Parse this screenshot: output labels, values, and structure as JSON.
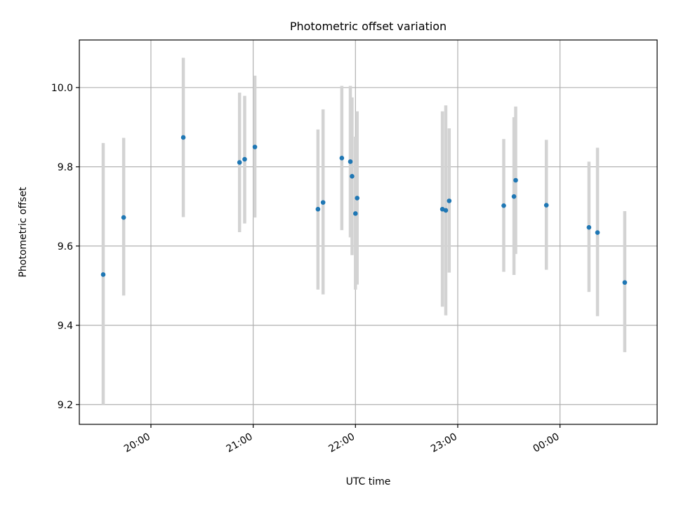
{
  "chart_data": {
    "type": "scatter",
    "title": "Photometric offset variation",
    "xlabel": "UTC time",
    "ylabel": "Photometric offset",
    "x_ticks": [
      "20:00",
      "21:00",
      "22:00",
      "23:00",
      "00:00"
    ],
    "x_tick_minutes": [
      1200,
      1260,
      1320,
      1380,
      1440
    ],
    "xlim_minutes": [
      1158,
      1497
    ],
    "y_ticks": [
      "9.2",
      "9.4",
      "9.6",
      "9.8",
      "10.0"
    ],
    "y_tick_values": [
      9.2,
      9.4,
      9.6,
      9.8,
      10.0
    ],
    "ylim": [
      9.15,
      10.12
    ],
    "grid": true,
    "colors": {
      "marker": "#1f77b4",
      "errorbar": "#d3d3d3",
      "grid": "#b0b0b0"
    },
    "series": [
      {
        "points": [
          {
            "t": "19:32",
            "y": 9.528,
            "lo": 9.2,
            "hi": 9.86
          },
          {
            "t": "19:44",
            "y": 9.672,
            "lo": 9.475,
            "hi": 9.873
          },
          {
            "t": "20:19",
            "y": 9.874,
            "lo": 9.673,
            "hi": 10.075
          },
          {
            "t": "20:52",
            "y": 9.811,
            "lo": 9.635,
            "hi": 9.987
          },
          {
            "t": "20:55",
            "y": 9.819,
            "lo": 9.657,
            "hi": 9.979
          },
          {
            "t": "21:01",
            "y": 9.85,
            "lo": 9.672,
            "hi": 10.03
          },
          {
            "t": "21:38",
            "y": 9.693,
            "lo": 9.49,
            "hi": 9.894
          },
          {
            "t": "21:41",
            "y": 9.71,
            "lo": 9.478,
            "hi": 9.945
          },
          {
            "t": "21:52",
            "y": 9.822,
            "lo": 9.64,
            "hi": 10.004
          },
          {
            "t": "21:57",
            "y": 9.813,
            "lo": 9.622,
            "hi": 10.004
          },
          {
            "t": "21:58",
            "y": 9.776,
            "lo": 9.577,
            "hi": 9.975
          },
          {
            "t": "22:00",
            "y": 9.682,
            "lo": 9.49,
            "hi": 9.876
          },
          {
            "t": "22:01",
            "y": 9.721,
            "lo": 9.503,
            "hi": 9.94
          },
          {
            "t": "22:51",
            "y": 9.693,
            "lo": 9.447,
            "hi": 9.94
          },
          {
            "t": "22:53",
            "y": 9.69,
            "lo": 9.425,
            "hi": 9.955
          },
          {
            "t": "22:55",
            "y": 9.714,
            "lo": 9.533,
            "hi": 9.897
          },
          {
            "t": "23:27",
            "y": 9.702,
            "lo": 9.535,
            "hi": 9.87
          },
          {
            "t": "23:33",
            "y": 9.725,
            "lo": 9.527,
            "hi": 9.925
          },
          {
            "t": "23:34",
            "y": 9.766,
            "lo": 9.58,
            "hi": 9.952
          },
          {
            "t": "23:52",
            "y": 9.703,
            "lo": 9.54,
            "hi": 9.868
          },
          {
            "t": "00:17",
            "y": 9.647,
            "lo": 9.484,
            "hi": 9.813
          },
          {
            "t": "00:22",
            "y": 9.634,
            "lo": 9.423,
            "hi": 9.848
          },
          {
            "t": "00:38",
            "y": 9.508,
            "lo": 9.332,
            "hi": 9.688
          }
        ]
      }
    ]
  }
}
